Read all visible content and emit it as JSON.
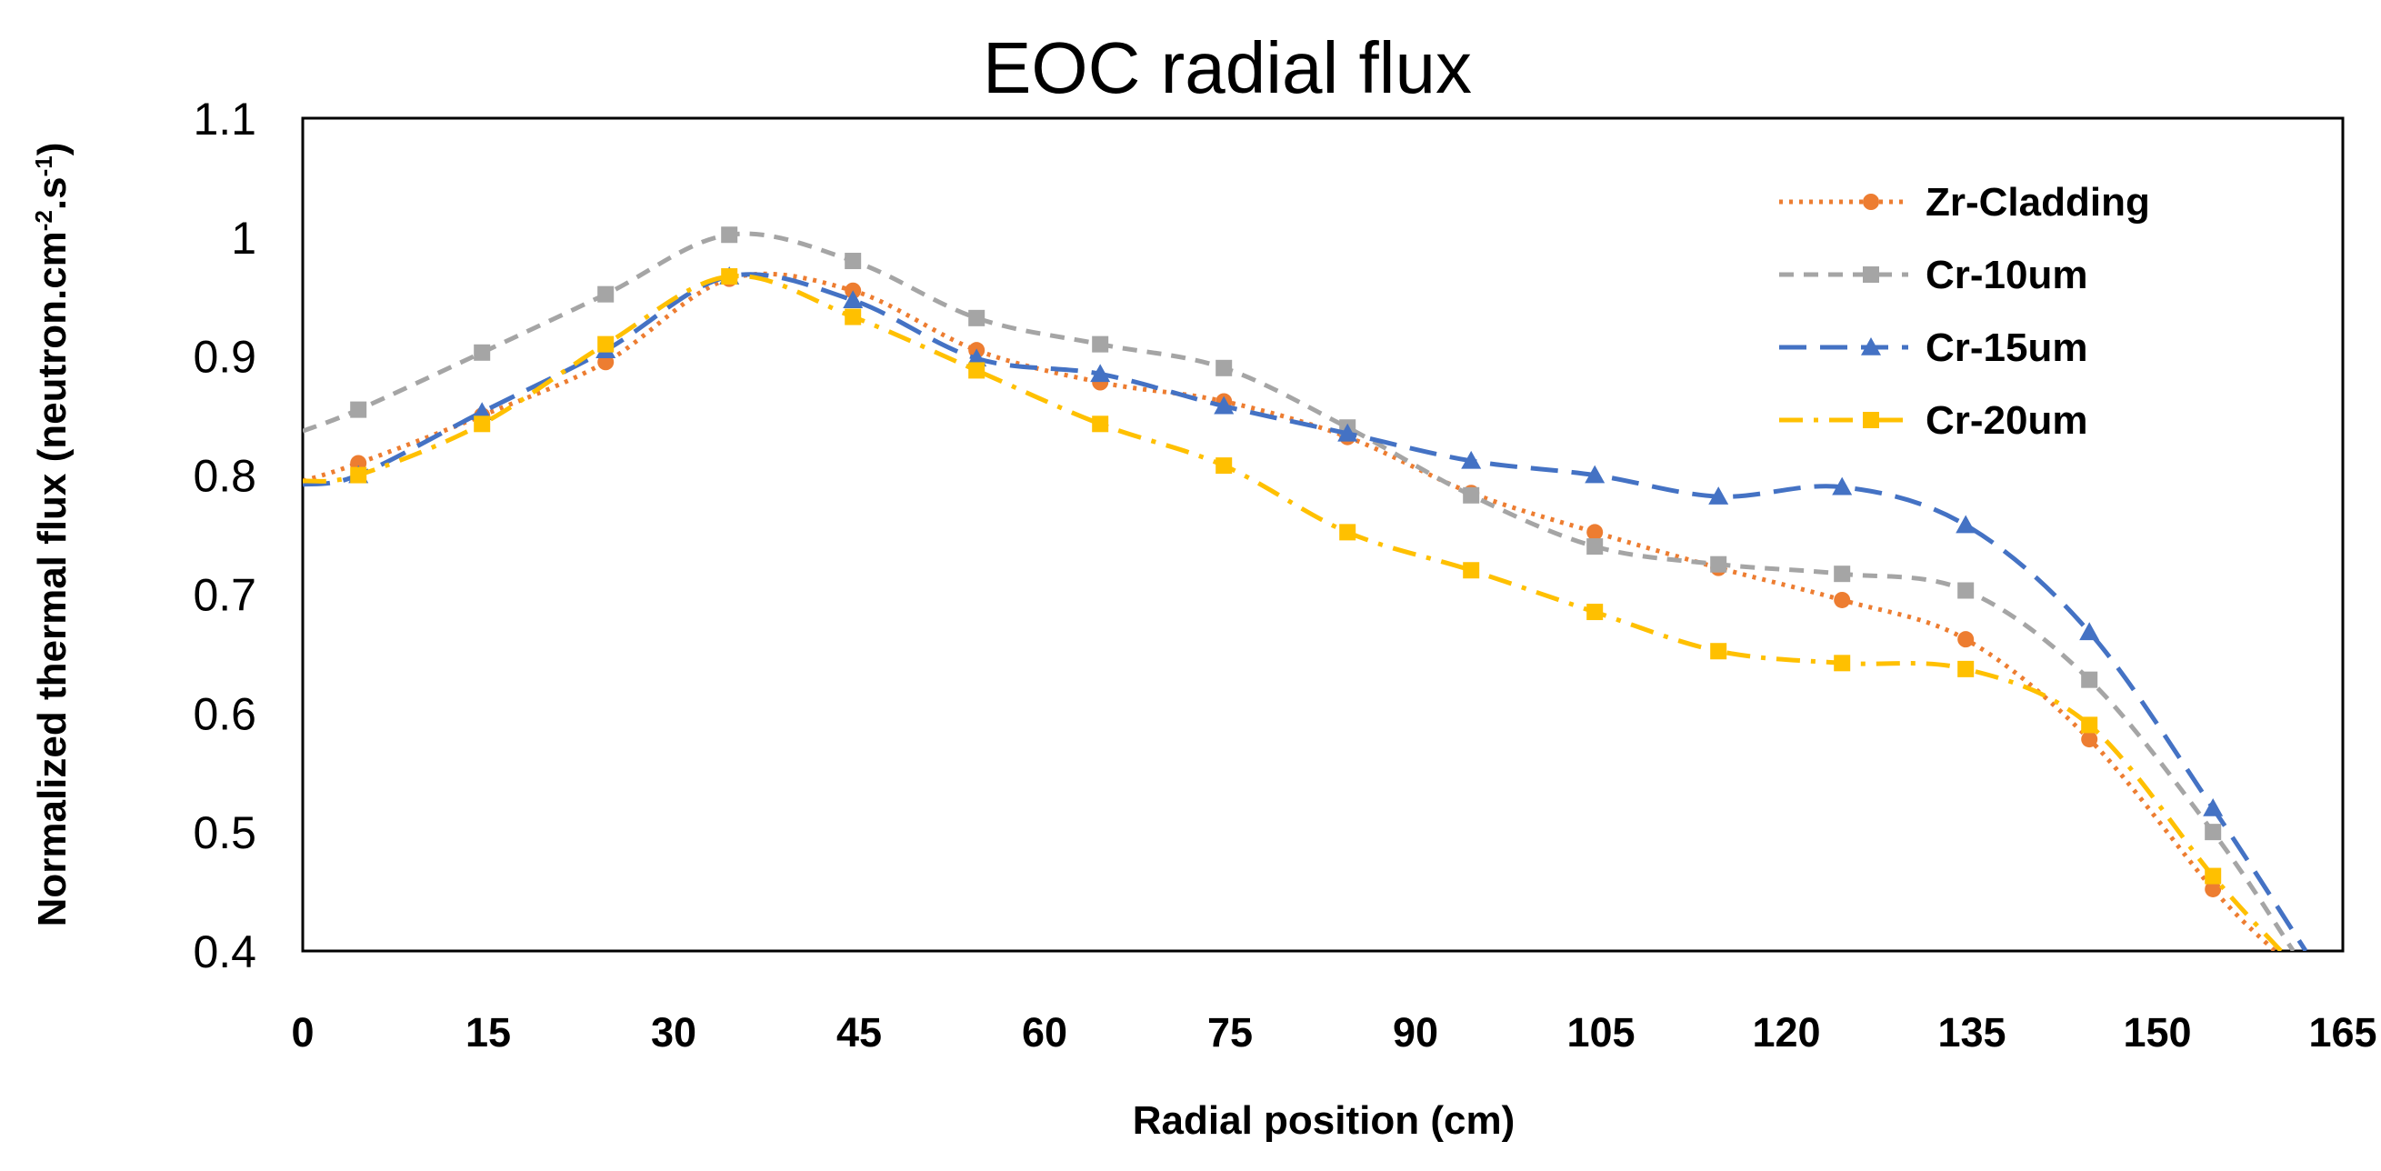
{
  "chart_data": {
    "type": "line",
    "title": "EOC radial flux",
    "xlabel": "Radial position (cm)",
    "ylabel": "Normalized thermal flux (neutron.cm",
    "ylabel_sup1": "-2",
    "ylabel_mid": ".s",
    "ylabel_sup2": "-1",
    "ylabel_end": ")",
    "xlim": [
      0,
      165
    ],
    "ylim": [
      0.4,
      1.1
    ],
    "xticks": [
      0,
      15,
      30,
      45,
      60,
      75,
      90,
      105,
      120,
      135,
      150,
      165
    ],
    "yticks": [
      "0.4",
      "0.5",
      "0.6",
      "0.7",
      "0.8",
      "0.9",
      "1",
      "1.1"
    ],
    "legend_position": "top-right",
    "series": [
      {
        "name": "Zr-Cladding",
        "color": "#ED7D31",
        "line_style": "dotted",
        "marker": "circle",
        "x": [
          4.5,
          14.5,
          24.5,
          34.5,
          44.5,
          54.5,
          64.5,
          74.5,
          84.5,
          94.5,
          104.5,
          114.5,
          124.5,
          134.5,
          144.5,
          154.5
        ],
        "y": [
          0.81,
          0.85,
          0.895,
          0.965,
          0.955,
          0.905,
          0.878,
          0.862,
          0.832,
          0.785,
          0.752,
          0.722,
          0.695,
          0.662,
          0.578,
          0.452
        ],
        "curve_start": [
          0,
          0.795
        ],
        "curve_end": [
          159.5,
          0.4
        ]
      },
      {
        "name": "Cr-10um",
        "color": "#A5A5A5",
        "line_style": "dashed",
        "marker": "square",
        "x": [
          4.5,
          14.5,
          24.5,
          34.5,
          44.5,
          54.5,
          64.5,
          74.5,
          84.5,
          94.5,
          104.5,
          114.5,
          124.5,
          134.5,
          144.5,
          154.5
        ],
        "y": [
          0.855,
          0.903,
          0.952,
          1.002,
          0.98,
          0.932,
          0.91,
          0.89,
          0.84,
          0.783,
          0.74,
          0.725,
          0.717,
          0.703,
          0.628,
          0.5
        ],
        "curve_start": [
          0,
          0.837
        ],
        "curve_end": [
          161,
          0.4
        ]
      },
      {
        "name": "Cr-15um",
        "color": "#4472C4",
        "line_style": "long-dash",
        "marker": "triangle",
        "x": [
          4.5,
          14.5,
          24.5,
          34.5,
          44.5,
          54.5,
          64.5,
          74.5,
          84.5,
          94.5,
          104.5,
          114.5,
          124.5,
          134.5,
          144.5,
          154.5
        ],
        "y": [
          0.8,
          0.853,
          0.905,
          0.967,
          0.947,
          0.898,
          0.885,
          0.858,
          0.835,
          0.812,
          0.8,
          0.782,
          0.79,
          0.758,
          0.668,
          0.52
        ],
        "curve_start": [
          0,
          0.792
        ],
        "curve_end": [
          162,
          0.4
        ]
      },
      {
        "name": "Cr-20um",
        "color": "#FFC000",
        "line_style": "dash-dot",
        "marker": "square",
        "x": [
          4.5,
          14.5,
          24.5,
          34.5,
          44.5,
          54.5,
          64.5,
          74.5,
          84.5,
          94.5,
          104.5,
          114.5,
          124.5,
          134.5,
          144.5,
          154.5
        ],
        "y": [
          0.8,
          0.843,
          0.91,
          0.967,
          0.933,
          0.888,
          0.843,
          0.808,
          0.752,
          0.72,
          0.685,
          0.652,
          0.642,
          0.637,
          0.59,
          0.463
        ],
        "curve_start": [
          0,
          0.795
        ],
        "curve_end": [
          160,
          0.4
        ]
      }
    ]
  }
}
